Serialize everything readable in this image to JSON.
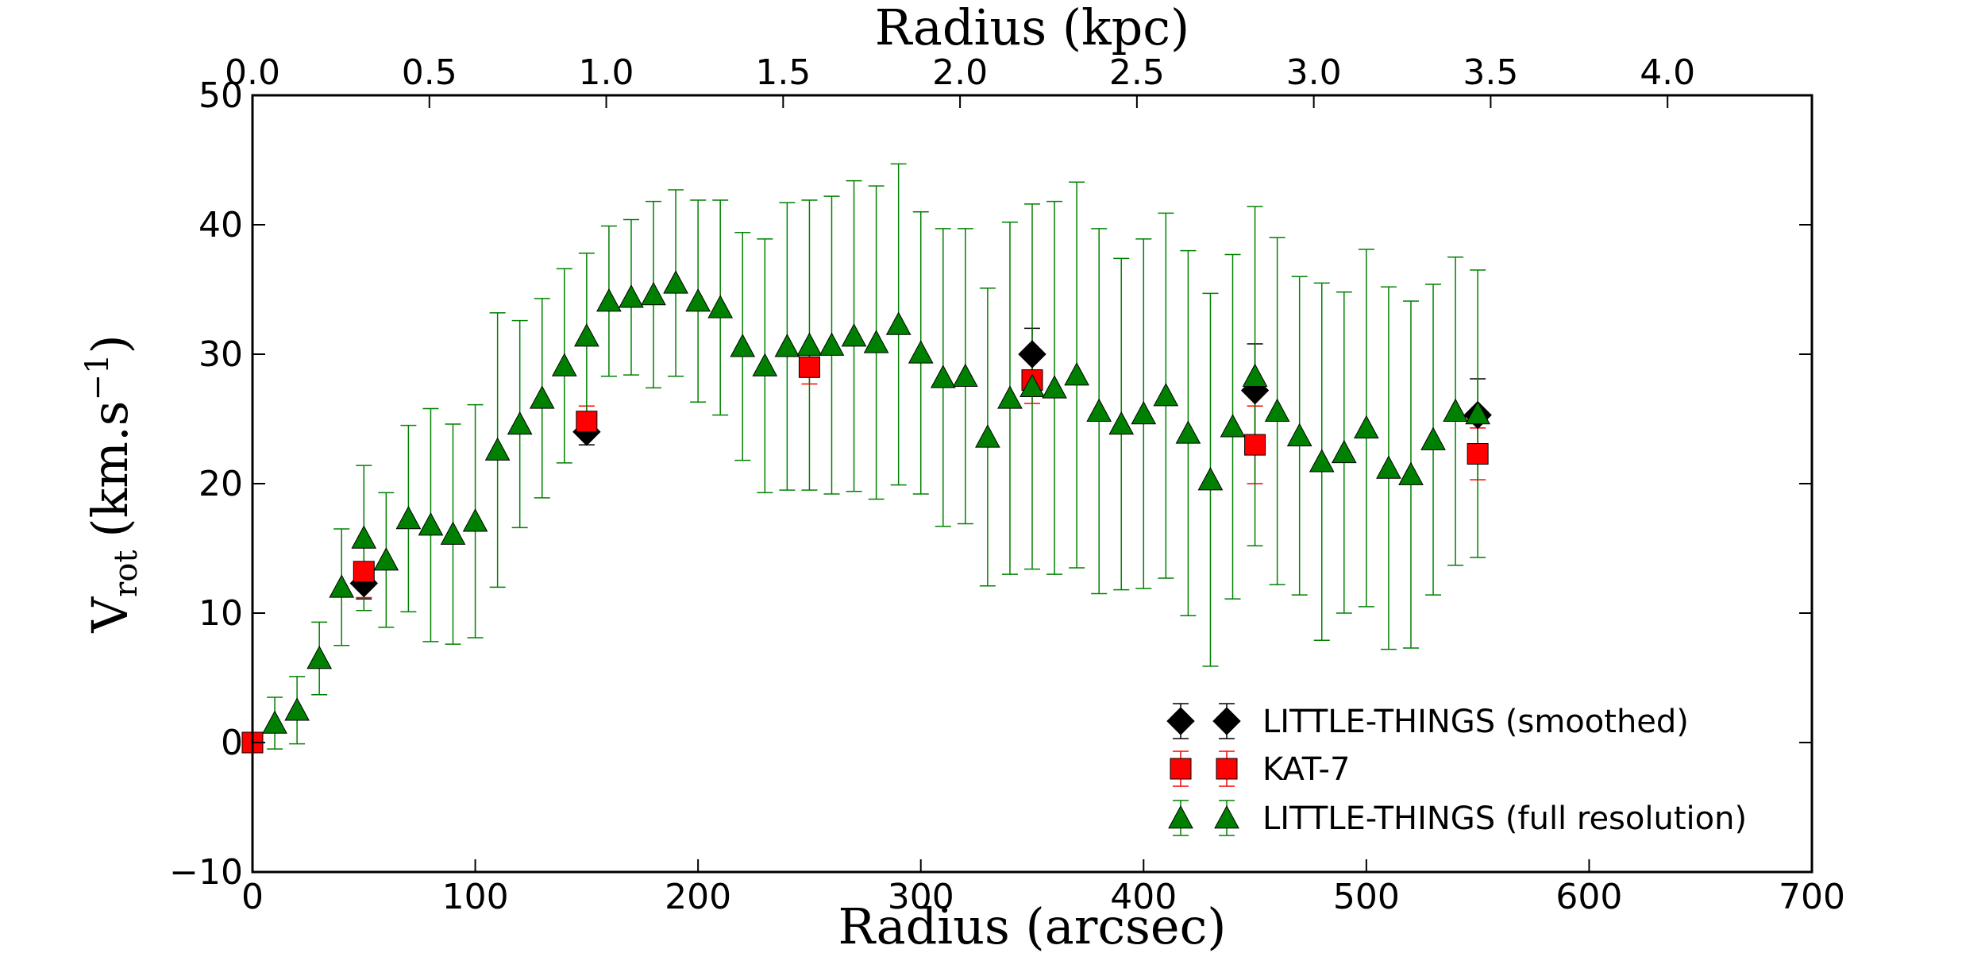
{
  "chart_data": {
    "type": "scatter",
    "title": "",
    "xlabel": "Radius (arcsec)",
    "ylabel": "V_rot (km.s^-1)",
    "ylabel_parts": {
      "main": "V",
      "sub": "rot",
      "units": "(km.s",
      "sup": "−1",
      "close": ")"
    },
    "top_xlabel": "Radius (kpc)",
    "xlim": [
      0,
      700
    ],
    "ylim": [
      -10,
      50
    ],
    "x_ticks": [
      0,
      100,
      200,
      300,
      400,
      500,
      600,
      700
    ],
    "y_ticks": [
      -10,
      0,
      10,
      20,
      30,
      40,
      50
    ],
    "x_tick_labels": [
      "0",
      "100",
      "200",
      "300",
      "400",
      "500",
      "600",
      "700"
    ],
    "y_tick_labels": [
      "−10",
      "0",
      "10",
      "20",
      "30",
      "40",
      "50"
    ],
    "top_ticks_kpc": [
      0.0,
      0.5,
      1.0,
      1.5,
      2.0,
      2.5,
      3.0,
      3.5,
      4.0
    ],
    "top_tick_labels": [
      "0.0",
      "0.5",
      "1.0",
      "1.5",
      "2.0",
      "2.5",
      "3.0",
      "3.5",
      "4.0"
    ],
    "arcsec_per_kpc": 158.8,
    "legend_position": "lower-right",
    "series": [
      {
        "name": "LITTLE-THINGS (smoothed)",
        "marker": "diamond",
        "color": "#000000",
        "errcolor": "#000000",
        "x": [
          50,
          150,
          350,
          450,
          550
        ],
        "y": [
          12.3,
          24.0,
          30.0,
          27.2,
          25.3
        ],
        "err": [
          1.2,
          1.0,
          2.0,
          3.6,
          2.8
        ]
      },
      {
        "name": "KAT-7",
        "marker": "square",
        "color": "#ff0000",
        "errcolor": "#ff0000",
        "x": [
          0,
          50,
          150,
          250,
          350,
          450,
          550
        ],
        "y": [
          0.0,
          13.2,
          24.8,
          29.0,
          28.0,
          23.0,
          22.3
        ],
        "err": [
          0.0,
          2.0,
          1.2,
          1.3,
          1.8,
          3.0,
          2.0
        ]
      },
      {
        "name": "LITTLE-THINGS (full resolution)",
        "marker": "triangle",
        "color": "#008000",
        "errcolor": "#008000",
        "x": [
          10,
          20,
          30,
          40,
          50,
          60,
          70,
          80,
          90,
          100,
          110,
          120,
          130,
          140,
          150,
          160,
          170,
          180,
          190,
          200,
          210,
          220,
          230,
          240,
          250,
          260,
          270,
          280,
          290,
          300,
          310,
          320,
          330,
          340,
          350,
          360,
          370,
          380,
          390,
          400,
          410,
          420,
          430,
          440,
          450,
          460,
          470,
          480,
          490,
          500,
          510,
          520,
          530,
          540,
          550
        ],
        "y": [
          1.5,
          2.5,
          6.5,
          12.0,
          15.8,
          14.1,
          17.3,
          16.8,
          16.1,
          17.1,
          22.6,
          24.6,
          26.6,
          29.1,
          31.4,
          34.1,
          34.4,
          34.6,
          35.5,
          34.1,
          33.6,
          30.6,
          29.1,
          30.6,
          30.7,
          30.7,
          31.4,
          30.9,
          32.3,
          30.1,
          28.2,
          28.3,
          23.6,
          26.6,
          27.5,
          27.4,
          28.4,
          25.6,
          24.6,
          25.4,
          26.8,
          23.9,
          20.3,
          24.4,
          28.3,
          25.6,
          23.7,
          21.7,
          22.4,
          24.3,
          21.2,
          20.7,
          23.4,
          25.6,
          25.4
        ],
        "err": [
          2.0,
          2.6,
          2.8,
          4.5,
          5.6,
          5.2,
          7.2,
          9.0,
          8.5,
          9.0,
          10.6,
          8.0,
          7.7,
          7.5,
          6.4,
          5.8,
          6.0,
          7.2,
          7.2,
          7.8,
          8.3,
          8.8,
          9.8,
          11.1,
          11.2,
          11.5,
          12.0,
          12.1,
          12.4,
          10.9,
          11.5,
          11.4,
          11.5,
          13.6,
          14.1,
          14.4,
          14.9,
          14.1,
          12.8,
          13.5,
          14.1,
          14.1,
          14.4,
          13.3,
          13.1,
          13.4,
          12.3,
          13.8,
          12.4,
          13.8,
          14.0,
          13.4,
          12.0,
          11.9,
          11.1
        ]
      }
    ]
  }
}
